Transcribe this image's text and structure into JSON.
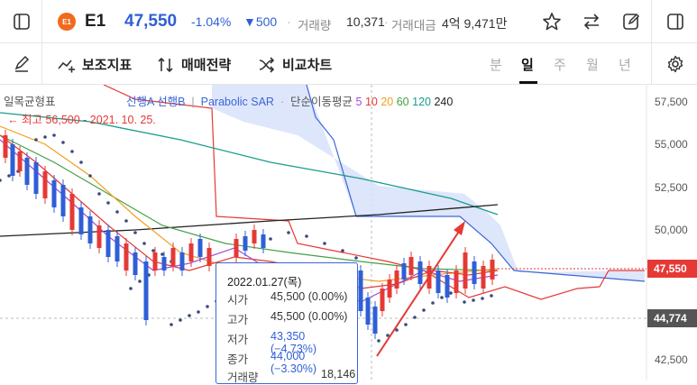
{
  "header": {
    "logo_text": "E1",
    "name": "E1",
    "price": "47,550",
    "change_pct": "-1.04%",
    "change_val": "▼500",
    "sep": "·",
    "volume_label": "거래량",
    "volume": "10,371",
    "amount_label": "거래대금",
    "amount": "4억 9,471만"
  },
  "toolbar": {
    "indicator_label": "보조지표",
    "strategy_label": "매매전략",
    "compare_label": "비교차트",
    "periods": [
      "분",
      "일",
      "주",
      "월",
      "년"
    ],
    "selected_period": "일"
  },
  "legend": {
    "ichimoku": "일목균형표",
    "leading": "선행A 선행B",
    "sar": "Parabolic SAR",
    "ma_label": "단순이동평균",
    "ma_periods": [
      "5",
      "10",
      "20",
      "60",
      "120",
      "240"
    ],
    "ma_colors": [
      "#a64ad8",
      "#e53935",
      "#f0a020",
      "#43a047",
      "#1a9c8c",
      "#222222"
    ],
    "high_note": "← 최고 56,500 - 2021. 10. 25."
  },
  "tooltip": {
    "date": "2022.01.27(목)",
    "rows": [
      {
        "k": "시가",
        "v": "45,500 (0.00%)",
        "color": "#333333"
      },
      {
        "k": "고가",
        "v": "45,500 (0.00%)",
        "color": "#333333"
      },
      {
        "k": "저가",
        "v": "43,350 (−4.73%)",
        "color": "#2f5fd6"
      },
      {
        "k": "종가",
        "v": "44,000 (−3.30%)",
        "color": "#2f5fd6"
      },
      {
        "k": "거래량",
        "v": "18,146",
        "color": "#333333"
      }
    ]
  },
  "yaxis": {
    "ticks": [
      "57,500",
      "55,000",
      "52,500",
      "50,000",
      "42,500"
    ],
    "current_tag": "47,550",
    "cursor_tag": "44,774"
  },
  "colors": {
    "up": "#e53935",
    "down": "#2f5fd6",
    "cloud": "#d8e2fb",
    "current_tag": "#e53935",
    "cursor_tag": "#555555"
  }
}
